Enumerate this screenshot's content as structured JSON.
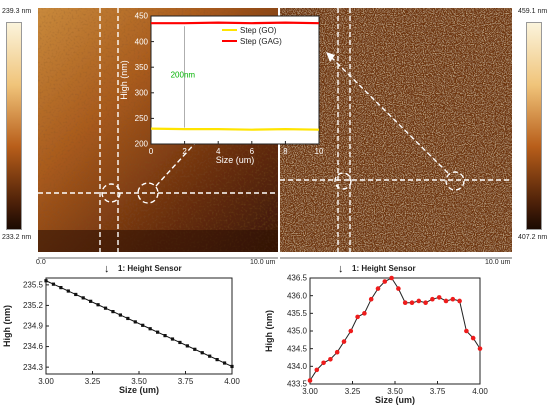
{
  "left_panel": {
    "scale_top": "239.3 nm",
    "scale_bottom": "233.2 nm",
    "axis_start": "0.0",
    "axis_end": "10.0 um",
    "profile_title": "1: Height Sensor"
  },
  "right_panel": {
    "scale_top": "459.1 nm",
    "scale_bottom": "407.2 nm",
    "axis_end": "10.0 um",
    "profile_title": "1: Height Sensor"
  },
  "colors": {
    "afm_dark": "#3a1a08",
    "afm_mid": "#9a4e16",
    "afm_light": "#f1d8a8",
    "marker_red": "#ee1c1c",
    "inset_red": "#ff0000",
    "inset_yellow": "#ffe400",
    "inset_annotation": "#00b300"
  },
  "chart_data": [
    {
      "type": "line",
      "panel": "inset",
      "xlabel": "Size (um)",
      "ylabel": "High (nm)",
      "xlim": [
        0,
        10
      ],
      "ylim": [
        200,
        450
      ],
      "x_ticks": [
        "0",
        "2",
        "4",
        "6",
        "8",
        "10"
      ],
      "y_ticks": [
        "200",
        "250",
        "300",
        "350",
        "400",
        "450"
      ],
      "series": [
        {
          "name": "Step (GO)",
          "color": "#ffe400",
          "x": [
            0,
            2,
            4,
            6,
            8,
            10
          ],
          "values": [
            230,
            229,
            229,
            228,
            229,
            228
          ]
        },
        {
          "name": "Step (GAG)",
          "color": "#ff0000",
          "x": [
            0,
            2,
            4,
            6,
            8,
            10
          ],
          "values": [
            436,
            436,
            437,
            436,
            437,
            436
          ]
        }
      ],
      "annotation": "200nm"
    },
    {
      "type": "line",
      "panel": "bottom-left",
      "xlabel": "Size (um)",
      "ylabel": "High (nm)",
      "xlim": [
        3.0,
        4.0
      ],
      "ylim": [
        234.2,
        235.6
      ],
      "x_ticks": [
        "3.00",
        "3.25",
        "3.50",
        "3.75",
        "4.00"
      ],
      "y_ticks": [
        "234.3",
        "234.6",
        "234.9",
        "235.2",
        "235.5"
      ],
      "series": [
        {
          "name": "",
          "color": "#111111",
          "x": [
            3.0,
            3.04,
            3.08,
            3.12,
            3.16,
            3.2,
            3.24,
            3.28,
            3.32,
            3.36,
            3.4,
            3.44,
            3.48,
            3.52,
            3.56,
            3.6,
            3.64,
            3.68,
            3.72,
            3.76,
            3.8,
            3.84,
            3.88,
            3.92,
            3.96,
            4.0
          ],
          "values": [
            235.56,
            235.51,
            235.46,
            235.41,
            235.36,
            235.31,
            235.26,
            235.21,
            235.16,
            235.11,
            235.06,
            235.01,
            234.96,
            234.91,
            234.86,
            234.81,
            234.76,
            234.71,
            234.66,
            234.61,
            234.56,
            234.51,
            234.46,
            234.41,
            234.36,
            234.31
          ]
        }
      ]
    },
    {
      "type": "line",
      "panel": "bottom-right",
      "xlabel": "Size (um)",
      "ylabel": "High (nm)",
      "xlim": [
        3.0,
        4.0
      ],
      "ylim": [
        433.5,
        436.5
      ],
      "x_ticks": [
        "3.00",
        "3.25",
        "3.50",
        "3.75",
        "4.00"
      ],
      "y_ticks": [
        "433.5",
        "434.0",
        "434.5",
        "435.0",
        "435.5",
        "436.0",
        "436.5"
      ],
      "series": [
        {
          "name": "",
          "color": "#ee1c1c",
          "x": [
            3.0,
            3.04,
            3.08,
            3.12,
            3.16,
            3.2,
            3.24,
            3.28,
            3.32,
            3.36,
            3.4,
            3.44,
            3.48,
            3.52,
            3.56,
            3.6,
            3.64,
            3.68,
            3.72,
            3.76,
            3.8,
            3.84,
            3.88,
            3.92,
            3.96,
            4.0
          ],
          "values": [
            433.6,
            433.9,
            434.1,
            434.2,
            434.4,
            434.7,
            435.0,
            435.4,
            435.5,
            435.9,
            436.2,
            436.4,
            436.5,
            436.2,
            435.8,
            435.8,
            435.85,
            435.8,
            435.9,
            435.95,
            435.85,
            435.9,
            435.85,
            435.0,
            434.8,
            434.5
          ]
        }
      ]
    }
  ]
}
